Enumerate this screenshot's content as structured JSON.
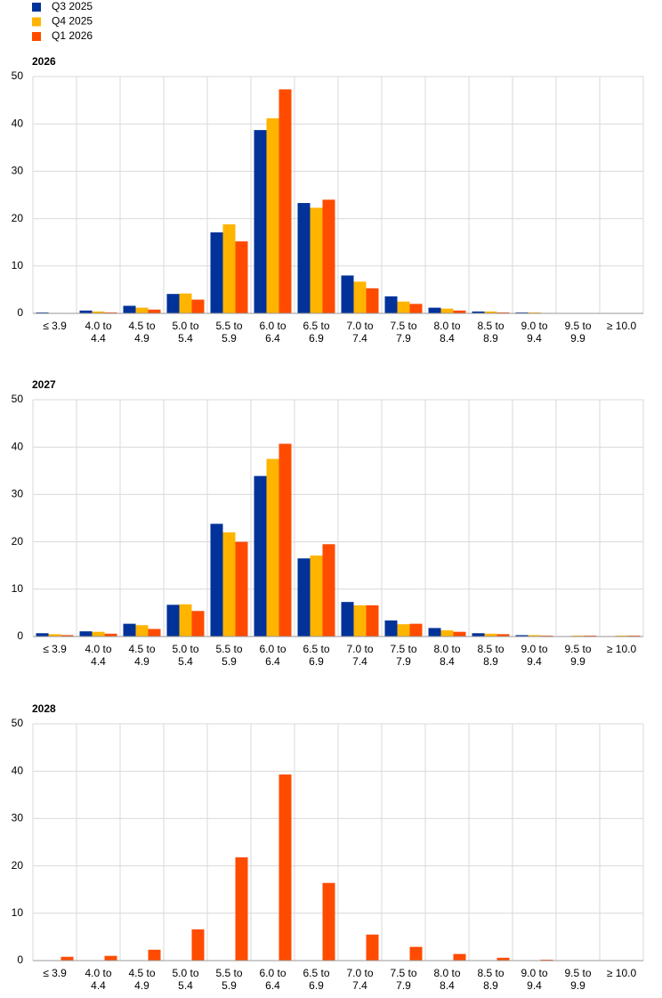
{
  "chart_data": [
    {
      "type": "bar",
      "title": "2026",
      "categories": [
        "≤ 3.9",
        "4.0 to 4.4",
        "4.5 to 4.9",
        "5.0 to 5.4",
        "5.5 to 5.9",
        "6.0 to 6.4",
        "6.5 to 6.9",
        "7.0 to 7.4",
        "7.5 to 7.9",
        "8.0 to 8.4",
        "8.5 to 8.9",
        "9.0 to 9.4",
        "9.5 to 9.9",
        "≥ 10.0"
      ],
      "series": [
        {
          "name": "Q3 2025",
          "color": "#003299",
          "values": [
            0.2,
            0.6,
            1.6,
            4.1,
            17.1,
            38.7,
            23.3,
            8.0,
            3.6,
            1.2,
            0.4,
            0.2,
            0,
            0
          ]
        },
        {
          "name": "Q4 2025",
          "color": "#ffb400",
          "values": [
            0.1,
            0.4,
            1.2,
            4.2,
            18.8,
            41.2,
            22.3,
            6.7,
            2.5,
            1.0,
            0.4,
            0.2,
            0,
            0
          ]
        },
        {
          "name": "Q1 2026",
          "color": "#ff4b00",
          "values": [
            0,
            0.2,
            0.8,
            2.9,
            15.2,
            47.3,
            24.0,
            5.3,
            2.0,
            0.6,
            0.2,
            0.1,
            0,
            0
          ]
        }
      ],
      "ylim": [
        0,
        50
      ],
      "yticks": [
        0,
        10,
        20,
        30,
        40,
        50
      ],
      "grid": true,
      "legend": "top-left"
    },
    {
      "type": "bar",
      "title": "2027",
      "categories": [
        "≤ 3.9",
        "4.0 to 4.4",
        "4.5 to 4.9",
        "5.0 to 5.4",
        "5.5 to 5.9",
        "6.0 to 6.4",
        "6.5 to 6.9",
        "7.0 to 7.4",
        "7.5 to 7.9",
        "8.0 to 8.4",
        "8.5 to 8.9",
        "9.0 to 9.4",
        "9.5 to 9.9",
        "≥ 10.0"
      ],
      "series": [
        {
          "name": "Q3 2025",
          "color": "#003299",
          "values": [
            0.7,
            1.1,
            2.7,
            6.7,
            23.8,
            33.9,
            16.5,
            7.3,
            3.4,
            1.8,
            0.7,
            0.3,
            0.1,
            0.1
          ]
        },
        {
          "name": "Q4 2025",
          "color": "#ffb400",
          "values": [
            0.5,
            1.0,
            2.4,
            6.8,
            22.0,
            37.5,
            17.1,
            6.6,
            2.6,
            1.3,
            0.6,
            0.3,
            0.2,
            0.2
          ]
        },
        {
          "name": "Q1 2026",
          "color": "#ff4b00",
          "values": [
            0.3,
            0.6,
            1.6,
            5.4,
            20.0,
            40.7,
            19.5,
            6.6,
            2.7,
            1.0,
            0.5,
            0.2,
            0.2,
            0.2
          ]
        }
      ],
      "ylim": [
        0,
        50
      ],
      "yticks": [
        0,
        10,
        20,
        30,
        40,
        50
      ],
      "grid": true
    },
    {
      "type": "bar",
      "title": "2028",
      "categories": [
        "≤ 3.9",
        "4.0 to 4.4",
        "4.5 to 4.9",
        "5.0 to 5.4",
        "5.5 to 5.9",
        "6.0 to 6.4",
        "6.5 to 6.9",
        "7.0 to 7.4",
        "7.5 to 7.9",
        "8.0 to 8.4",
        "8.5 to 8.9",
        "9.0 to 9.4",
        "9.5 to 9.9",
        "≥ 10.0"
      ],
      "series": [
        {
          "name": "Q1 2026",
          "color": "#ff4b00",
          "values": [
            0.8,
            1.0,
            2.3,
            6.6,
            21.8,
            39.3,
            16.4,
            5.5,
            2.9,
            1.4,
            0.6,
            0.2,
            0,
            0
          ]
        }
      ],
      "ylim": [
        0,
        50
      ],
      "yticks": [
        0,
        10,
        20,
        30,
        40,
        50
      ],
      "grid": true
    }
  ]
}
